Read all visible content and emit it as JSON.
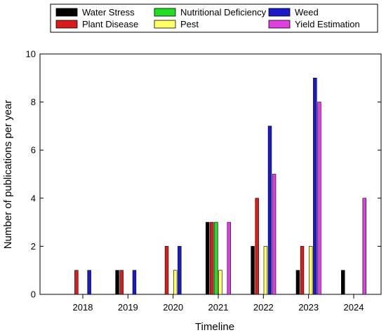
{
  "chart_data": {
    "type": "bar",
    "xlabel": "Timeline",
    "ylabel": "Number of publications per year",
    "ylim": [
      0,
      10
    ],
    "yticks": [
      0,
      2,
      4,
      6,
      8,
      10
    ],
    "categories": [
      "2018",
      "2019",
      "2020",
      "2021",
      "2022",
      "2023",
      "2024"
    ],
    "legend_position": "top",
    "grid": false,
    "series": [
      {
        "name": "Water Stress",
        "color": "#000000",
        "values": [
          0,
          1,
          0,
          3,
          2,
          1,
          1
        ]
      },
      {
        "name": "Plant Disease",
        "color": "#d91c1c",
        "values": [
          1,
          1,
          2,
          3,
          4,
          2,
          0
        ]
      },
      {
        "name": "Nutritional Deficiency",
        "color": "#22dd22",
        "values": [
          0,
          0,
          0,
          3,
          0,
          0,
          0
        ]
      },
      {
        "name": "Pest",
        "color": "#ffff66",
        "values": [
          0,
          0,
          1,
          1,
          2,
          2,
          0
        ]
      },
      {
        "name": "Weed",
        "color": "#1a1acc",
        "values": [
          1,
          1,
          2,
          0,
          7,
          9,
          0
        ]
      },
      {
        "name": "Yield Estimation",
        "color": "#e040e0",
        "values": [
          0,
          0,
          0,
          3,
          5,
          8,
          4
        ]
      }
    ]
  }
}
